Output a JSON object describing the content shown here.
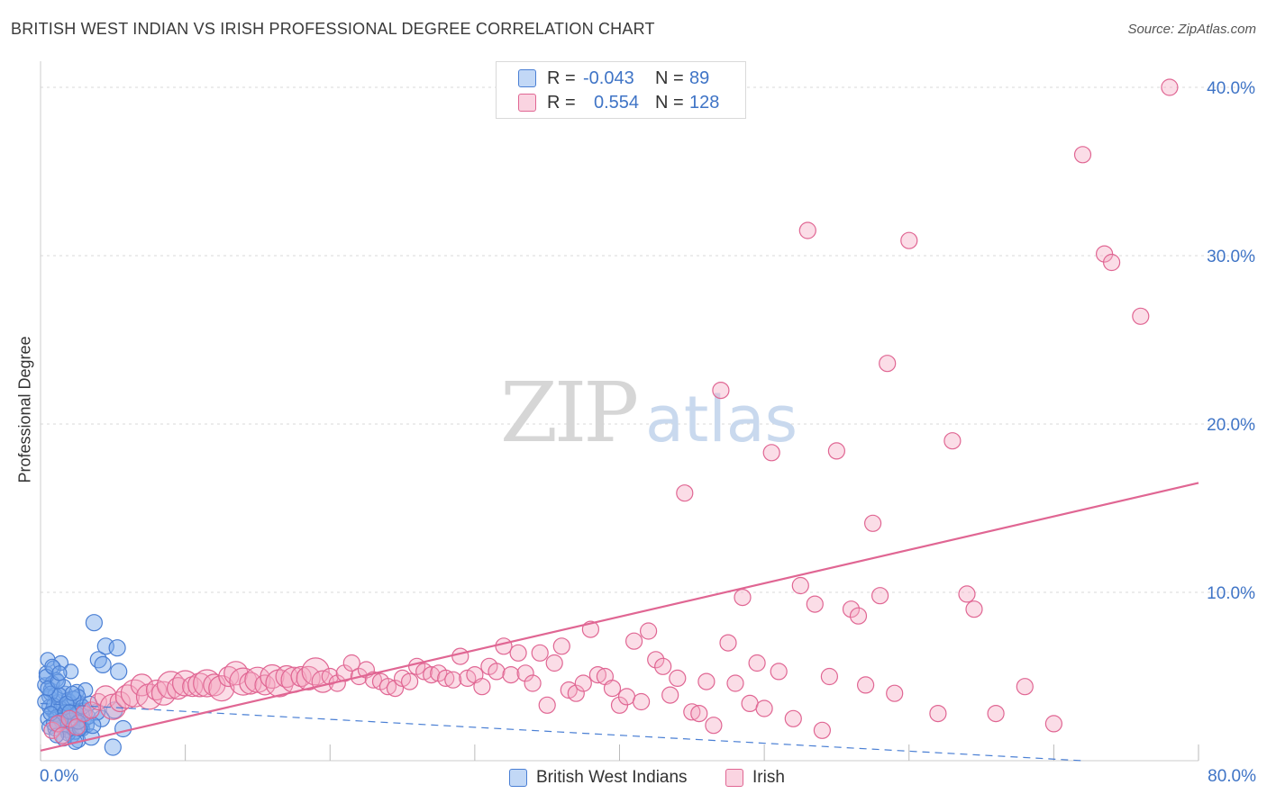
{
  "title": "BRITISH WEST INDIAN VS IRISH PROFESSIONAL DEGREE CORRELATION CHART",
  "source": "Source: ZipAtlas.com",
  "watermark": {
    "zip": "ZIP",
    "atlas": "atlas"
  },
  "colors": {
    "blue": "#4a7fd4",
    "blue_fill": "rgba(120,168,235,0.45)",
    "pink": "#e06693",
    "pink_fill": "rgba(246,170,195,0.40)",
    "grid": "#d8d8d8",
    "axis_text": "#3f74c6"
  },
  "legend": {
    "rows": [
      {
        "r_label": "R =",
        "r_value": "-0.043",
        "n_label": "N =",
        "n_value": "89"
      },
      {
        "r_label": "R =",
        "r_value": "0.554",
        "n_label": "N =",
        "n_value": "128"
      }
    ]
  },
  "bottom_legend": [
    "British West Indians",
    "Irish"
  ],
  "chart_data": {
    "type": "scatter",
    "title": "BRITISH WEST INDIAN VS IRISH PROFESSIONAL DEGREE CORRELATION CHART",
    "xlabel": "",
    "ylabel": "Professional Degree",
    "xlim": [
      0,
      80
    ],
    "ylim": [
      0,
      40
    ],
    "x_tick_labels": [
      "0.0%",
      "80.0%"
    ],
    "y_ticks": [
      10,
      20,
      30,
      40
    ],
    "y_tick_labels": [
      "10.0%",
      "20.0%",
      "30.0%",
      "40.0%"
    ],
    "series": [
      {
        "name": "British West Indians",
        "color": "blue",
        "trend": {
          "x": [
            0,
            72
          ],
          "y": [
            3.4,
            0.0
          ],
          "style": "dashed"
        },
        "points": [
          [
            0.3,
            4.5
          ],
          [
            0.4,
            5.2
          ],
          [
            0.5,
            6.0
          ],
          [
            0.6,
            3.8
          ],
          [
            0.7,
            4.2
          ],
          [
            0.8,
            3.0
          ],
          [
            0.9,
            5.5
          ],
          [
            1.0,
            2.8
          ],
          [
            1.1,
            4.8
          ],
          [
            1.2,
            3.5
          ],
          [
            1.3,
            2.2
          ],
          [
            1.4,
            5.8
          ],
          [
            1.5,
            3.2
          ],
          [
            1.6,
            2.5
          ],
          [
            1.7,
            4.0
          ],
          [
            1.8,
            1.8
          ],
          [
            1.9,
            3.6
          ],
          [
            2.0,
            2.0
          ],
          [
            2.1,
            5.3
          ],
          [
            2.2,
            1.5
          ],
          [
            2.3,
            3.0
          ],
          [
            2.4,
            2.7
          ],
          [
            2.5,
            4.1
          ],
          [
            2.6,
            1.2
          ],
          [
            2.7,
            2.9
          ],
          [
            2.8,
            3.3
          ],
          [
            2.9,
            1.9
          ],
          [
            3.0,
            2.4
          ],
          [
            3.1,
            4.2
          ],
          [
            3.2,
            2.1
          ],
          [
            0.5,
            2.5
          ],
          [
            0.6,
            3.2
          ],
          [
            0.8,
            4.6
          ],
          [
            1.0,
            3.9
          ],
          [
            1.2,
            2.3
          ],
          [
            1.4,
            3.1
          ],
          [
            1.6,
            4.4
          ],
          [
            1.8,
            2.7
          ],
          [
            2.0,
            3.5
          ],
          [
            2.2,
            2.2
          ],
          [
            2.4,
            1.7
          ],
          [
            2.6,
            3.8
          ],
          [
            2.8,
            2.0
          ],
          [
            3.0,
            3.0
          ],
          [
            3.3,
            2.6
          ],
          [
            3.5,
            1.4
          ],
          [
            3.7,
            8.2
          ],
          [
            4.0,
            6.0
          ],
          [
            4.3,
            5.7
          ],
          [
            4.2,
            2.5
          ],
          [
            3.9,
            2.9
          ],
          [
            3.6,
            2.1
          ],
          [
            0.4,
            5.0
          ],
          [
            0.7,
            4.0
          ],
          [
            0.9,
            3.3
          ],
          [
            1.1,
            2.6
          ],
          [
            1.3,
            3.9
          ],
          [
            1.5,
            2.0
          ],
          [
            1.7,
            2.9
          ],
          [
            1.9,
            1.6
          ],
          [
            2.1,
            2.4
          ],
          [
            2.3,
            3.7
          ],
          [
            2.5,
            2.8
          ],
          [
            2.7,
            1.9
          ],
          [
            2.9,
            3.2
          ],
          [
            0.3,
            3.5
          ],
          [
            0.5,
            4.3
          ],
          [
            0.6,
            2.0
          ],
          [
            0.8,
            5.6
          ],
          [
            1.0,
            1.9
          ],
          [
            4.5,
            6.8
          ],
          [
            5.3,
            6.7
          ],
          [
            5.4,
            5.3
          ],
          [
            5.7,
            1.9
          ],
          [
            5.1,
            3.0
          ],
          [
            5.0,
            0.8
          ],
          [
            1.2,
            4.7
          ],
          [
            1.4,
            2.4
          ],
          [
            1.6,
            1.3
          ],
          [
            1.8,
            3.4
          ],
          [
            2.0,
            2.9
          ],
          [
            2.2,
            4.0
          ],
          [
            2.4,
            1.1
          ],
          [
            0.9,
            2.2
          ],
          [
            1.1,
            1.5
          ],
          [
            1.3,
            5.2
          ],
          [
            3.4,
            3.4
          ],
          [
            0.7,
            2.8
          ],
          [
            2.6,
            2.3
          ]
        ]
      },
      {
        "name": "Irish",
        "color": "pink",
        "trend": {
          "x": [
            0,
            80
          ],
          "y": [
            0.6,
            16.5
          ],
          "style": "solid"
        },
        "points": [
          [
            0.8,
            1.8
          ],
          [
            1.2,
            2.2
          ],
          [
            1.5,
            1.5
          ],
          [
            2.0,
            2.5
          ],
          [
            2.5,
            2.0
          ],
          [
            3.0,
            2.8
          ],
          [
            3.5,
            3.0
          ],
          [
            4.0,
            3.5
          ],
          [
            4.5,
            3.8
          ],
          [
            5.0,
            3.2
          ],
          [
            5.5,
            3.5
          ],
          [
            6.0,
            3.8
          ],
          [
            6.5,
            4.0
          ],
          [
            7.0,
            4.5
          ],
          [
            7.5,
            3.8
          ],
          [
            8.0,
            4.2
          ],
          [
            8.5,
            4.0
          ],
          [
            9.0,
            4.5
          ],
          [
            9.5,
            4.3
          ],
          [
            10.0,
            4.6
          ],
          [
            10.5,
            4.4
          ],
          [
            11.0,
            4.5
          ],
          [
            11.5,
            4.6
          ],
          [
            12.0,
            4.5
          ],
          [
            12.5,
            4.3
          ],
          [
            13.0,
            5.0
          ],
          [
            13.5,
            5.2
          ],
          [
            14.0,
            4.7
          ],
          [
            14.5,
            4.6
          ],
          [
            15.0,
            4.8
          ],
          [
            15.5,
            4.5
          ],
          [
            16.0,
            5.0
          ],
          [
            16.5,
            4.6
          ],
          [
            17.0,
            5.0
          ],
          [
            17.5,
            4.8
          ],
          [
            18.0,
            5.0
          ],
          [
            18.5,
            4.9
          ],
          [
            19.0,
            5.3
          ],
          [
            19.5,
            4.7
          ],
          [
            20.0,
            5.0
          ],
          [
            20.5,
            4.6
          ],
          [
            21.0,
            5.2
          ],
          [
            21.5,
            5.8
          ],
          [
            22.0,
            5.0
          ],
          [
            22.5,
            5.4
          ],
          [
            23.0,
            4.8
          ],
          [
            23.5,
            4.7
          ],
          [
            24.0,
            4.4
          ],
          [
            24.5,
            4.3
          ],
          [
            25.0,
            4.9
          ],
          [
            25.5,
            4.7
          ],
          [
            26.0,
            5.6
          ],
          [
            26.5,
            5.3
          ],
          [
            27.0,
            5.1
          ],
          [
            27.5,
            5.2
          ],
          [
            28.0,
            4.9
          ],
          [
            28.5,
            4.8
          ],
          [
            29.0,
            6.2
          ],
          [
            29.5,
            4.9
          ],
          [
            30.0,
            5.1
          ],
          [
            30.5,
            4.4
          ],
          [
            31.0,
            5.6
          ],
          [
            31.5,
            5.3
          ],
          [
            32.0,
            6.8
          ],
          [
            32.5,
            5.1
          ],
          [
            33.0,
            6.4
          ],
          [
            33.5,
            5.2
          ],
          [
            34.0,
            4.6
          ],
          [
            34.5,
            6.4
          ],
          [
            35.0,
            3.3
          ],
          [
            35.5,
            5.8
          ],
          [
            36.0,
            6.8
          ],
          [
            36.5,
            4.2
          ],
          [
            37.0,
            4.0
          ],
          [
            37.5,
            4.6
          ],
          [
            38.0,
            7.8
          ],
          [
            38.5,
            5.1
          ],
          [
            39.0,
            5.0
          ],
          [
            39.5,
            4.3
          ],
          [
            40.0,
            3.3
          ],
          [
            40.5,
            3.8
          ],
          [
            41.0,
            7.1
          ],
          [
            41.5,
            3.5
          ],
          [
            42.0,
            7.7
          ],
          [
            42.5,
            6.0
          ],
          [
            43.0,
            5.6
          ],
          [
            43.5,
            3.9
          ],
          [
            44.0,
            4.9
          ],
          [
            44.5,
            15.9
          ],
          [
            45.0,
            2.9
          ],
          [
            45.5,
            2.8
          ],
          [
            46.0,
            4.7
          ],
          [
            46.5,
            2.1
          ],
          [
            47.0,
            22.0
          ],
          [
            47.5,
            7.0
          ],
          [
            48.0,
            4.6
          ],
          [
            48.5,
            9.7
          ],
          [
            49.0,
            3.4
          ],
          [
            49.5,
            5.8
          ],
          [
            50.0,
            3.1
          ],
          [
            50.5,
            18.3
          ],
          [
            51.0,
            5.3
          ],
          [
            52.0,
            2.5
          ],
          [
            52.5,
            10.4
          ],
          [
            53.0,
            31.5
          ],
          [
            53.5,
            9.3
          ],
          [
            54.0,
            1.8
          ],
          [
            54.5,
            5.0
          ],
          [
            55.0,
            18.4
          ],
          [
            56.0,
            9.0
          ],
          [
            56.5,
            8.6
          ],
          [
            57.0,
            4.5
          ],
          [
            57.5,
            14.1
          ],
          [
            58.0,
            9.8
          ],
          [
            58.5,
            23.6
          ],
          [
            59.0,
            4.0
          ],
          [
            60.0,
            30.9
          ],
          [
            62.0,
            2.8
          ],
          [
            63.0,
            19.0
          ],
          [
            64.0,
            9.9
          ],
          [
            64.5,
            9.0
          ],
          [
            66.0,
            2.8
          ],
          [
            68.0,
            4.4
          ],
          [
            70.0,
            2.2
          ],
          [
            72.0,
            36.0
          ],
          [
            73.5,
            30.1
          ],
          [
            74.0,
            29.6
          ],
          [
            76.0,
            26.4
          ],
          [
            78.0,
            40.0
          ]
        ]
      }
    ]
  }
}
